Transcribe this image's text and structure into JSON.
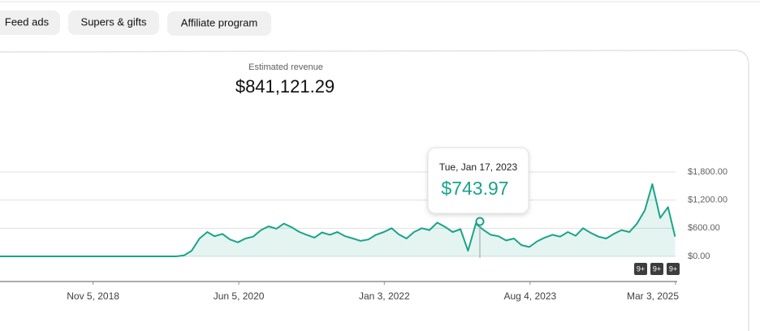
{
  "tabs": [
    "Feed ads",
    "Supers & gifts",
    "Affiliate program"
  ],
  "chart_data": {
    "type": "area",
    "title": "Estimated revenue",
    "metric_value": "$841,121.29",
    "color": "#1ba38a",
    "grid": true,
    "x": [
      "2017-11-01",
      "2017-12-01",
      "2018-01-01",
      "2018-02-01",
      "2018-03-01",
      "2018-04-01",
      "2018-05-01",
      "2018-06-01",
      "2018-07-01",
      "2018-08-01",
      "2018-09-01",
      "2018-10-01",
      "2018-11-01",
      "2018-12-01",
      "2019-01-01",
      "2019-02-01",
      "2019-03-01",
      "2019-04-01",
      "2019-05-01",
      "2019-06-01",
      "2019-07-01",
      "2019-08-01",
      "2019-09-01",
      "2019-10-01",
      "2019-11-01",
      "2019-12-01",
      "2020-01-01",
      "2020-02-01",
      "2020-03-01",
      "2020-04-01",
      "2020-05-01",
      "2020-06-01",
      "2020-07-01",
      "2020-08-01",
      "2020-09-01",
      "2020-10-01",
      "2020-11-01",
      "2020-12-01",
      "2021-01-01",
      "2021-02-01",
      "2021-03-01",
      "2021-04-01",
      "2021-05-01",
      "2021-06-01",
      "2021-07-01",
      "2021-08-01",
      "2021-09-01",
      "2021-10-01",
      "2021-11-01",
      "2021-12-01",
      "2022-01-01",
      "2022-02-01",
      "2022-03-01",
      "2022-04-01",
      "2022-05-01",
      "2022-06-01",
      "2022-07-01",
      "2022-08-01",
      "2022-09-01",
      "2022-10-01",
      "2022-11-01",
      "2022-12-01",
      "2023-01-01",
      "2023-02-01",
      "2023-03-01",
      "2023-04-01",
      "2023-05-01",
      "2023-06-01",
      "2023-07-01",
      "2023-08-01",
      "2023-09-01",
      "2023-10-01",
      "2023-11-01",
      "2023-12-01",
      "2024-01-01",
      "2024-02-01",
      "2024-03-01",
      "2024-04-01",
      "2024-05-01",
      "2024-06-01",
      "2024-07-01",
      "2024-08-01",
      "2024-09-01",
      "2024-10-01",
      "2024-11-01",
      "2024-12-01",
      "2025-01-01",
      "2025-02-01",
      "2025-03-01"
    ],
    "values": [
      0,
      0,
      0,
      0,
      0,
      0,
      0,
      0,
      0,
      0,
      0,
      0,
      0,
      0,
      0,
      0,
      0,
      0,
      0,
      0,
      0,
      0,
      0,
      0,
      20,
      120,
      380,
      520,
      430,
      480,
      360,
      300,
      380,
      420,
      560,
      640,
      590,
      700,
      620,
      520,
      460,
      400,
      510,
      460,
      520,
      430,
      380,
      330,
      360,
      460,
      520,
      600,
      470,
      380,
      520,
      600,
      560,
      720,
      630,
      520,
      580,
      120,
      700,
      560,
      460,
      430,
      340,
      380,
      240,
      200,
      320,
      400,
      460,
      420,
      520,
      440,
      600,
      500,
      420,
      380,
      480,
      560,
      520,
      700,
      980,
      1540,
      820,
      1050,
      420
    ],
    "xlim": [
      "2017-11-01",
      "2025-03-03"
    ],
    "xticks": [
      {
        "value": "2018-11-05",
        "label": "Nov 5, 2018"
      },
      {
        "value": "2020-06-05",
        "label": "Jun 5, 2020"
      },
      {
        "value": "2022-01-03",
        "label": "Jan 3, 2022"
      },
      {
        "value": "2023-08-04",
        "label": "Aug 4, 2023"
      },
      {
        "value": "2025-03-03",
        "label": "Mar 3, 2025"
      }
    ],
    "ylim": [
      0,
      1800
    ],
    "yticks": [
      {
        "value": 0,
        "label": "$0.00"
      },
      {
        "value": 600,
        "label": "$600.00"
      },
      {
        "value": 1200,
        "label": "$1,200.00"
      },
      {
        "value": 1800,
        "label": "$1,800.00"
      }
    ],
    "tooltip": {
      "x": "2023-01-17",
      "label": "Tue, Jan 17, 2023",
      "value": 743.97,
      "value_label": "$743.97"
    },
    "annotations": [
      "9+",
      "9+",
      "9+"
    ]
  }
}
